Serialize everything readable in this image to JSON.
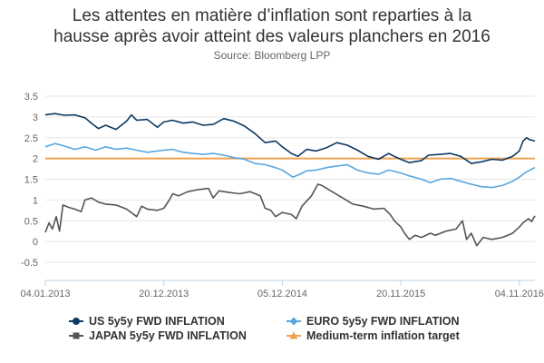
{
  "header": {
    "title_line_1": "Les attentes en matière d’inflation sont reparties à la",
    "title_line_2": "hausse après avoir atteint des valeurs planchers en 2016",
    "subtitle": "Source: Bloomberg LPP"
  },
  "chart_data": {
    "type": "line",
    "grid": true,
    "legend_position": "bottom",
    "ylim": [
      -0.5,
      3.5
    ],
    "y_ticks": [
      3.5,
      3,
      2.5,
      2,
      1.5,
      1,
      0.5,
      0,
      -0.5
    ],
    "y_tick_labels": [
      "3.5",
      "3",
      "2.5",
      "2",
      "1.5",
      "1",
      "0.5",
      "0",
      "-0.5"
    ],
    "xlim": [
      "2013-01-04",
      "2016-12-20"
    ],
    "x_ticks": [
      "2013-01-04",
      "2013-12-20",
      "2014-12-05",
      "2015-11-20",
      "2016-11-04"
    ],
    "x_tick_labels": [
      "04.01.2013",
      "20.12.2013",
      "05.12.2014",
      "20.11.2015",
      "04.11.2016"
    ],
    "series": [
      {
        "name": "US 5y5y FWD INFLATION",
        "color": "#0b3a63",
        "marker": "circle",
        "points": [
          [
            "2013-01-04",
            3.05
          ],
          [
            "2013-02-01",
            3.08
          ],
          [
            "2013-03-01",
            3.04
          ],
          [
            "2013-04-01",
            3.05
          ],
          [
            "2013-05-01",
            2.98
          ],
          [
            "2013-05-20",
            2.85
          ],
          [
            "2013-06-10",
            2.72
          ],
          [
            "2013-07-01",
            2.8
          ],
          [
            "2013-08-01",
            2.7
          ],
          [
            "2013-09-01",
            2.9
          ],
          [
            "2013-09-15",
            3.05
          ],
          [
            "2013-10-01",
            2.92
          ],
          [
            "2013-11-01",
            2.94
          ],
          [
            "2013-12-01",
            2.75
          ],
          [
            "2013-12-20",
            2.88
          ],
          [
            "2014-01-15",
            2.92
          ],
          [
            "2014-02-15",
            2.85
          ],
          [
            "2014-03-15",
            2.88
          ],
          [
            "2014-04-15",
            2.8
          ],
          [
            "2014-05-15",
            2.82
          ],
          [
            "2014-06-15",
            2.96
          ],
          [
            "2014-07-15",
            2.9
          ],
          [
            "2014-08-15",
            2.78
          ],
          [
            "2014-09-15",
            2.6
          ],
          [
            "2014-10-15",
            2.38
          ],
          [
            "2014-11-15",
            2.42
          ],
          [
            "2014-12-05",
            2.28
          ],
          [
            "2015-01-01",
            2.12
          ],
          [
            "2015-01-20",
            2.05
          ],
          [
            "2015-02-15",
            2.22
          ],
          [
            "2015-03-15",
            2.18
          ],
          [
            "2015-04-15",
            2.26
          ],
          [
            "2015-05-15",
            2.38
          ],
          [
            "2015-06-15",
            2.32
          ],
          [
            "2015-07-15",
            2.2
          ],
          [
            "2015-08-15",
            2.05
          ],
          [
            "2015-09-15",
            1.98
          ],
          [
            "2015-10-15",
            2.12
          ],
          [
            "2015-11-01",
            2.05
          ],
          [
            "2015-11-20",
            1.98
          ],
          [
            "2015-12-15",
            1.9
          ],
          [
            "2016-01-20",
            1.95
          ],
          [
            "2016-02-10",
            2.08
          ],
          [
            "2016-03-15",
            2.1
          ],
          [
            "2016-04-15",
            2.12
          ],
          [
            "2016-05-15",
            2.05
          ],
          [
            "2016-06-15",
            1.88
          ],
          [
            "2016-07-15",
            1.92
          ],
          [
            "2016-08-15",
            1.98
          ],
          [
            "2016-09-15",
            1.96
          ],
          [
            "2016-10-15",
            2.05
          ],
          [
            "2016-11-04",
            2.18
          ],
          [
            "2016-11-15",
            2.42
          ],
          [
            "2016-11-25",
            2.5
          ],
          [
            "2016-12-05",
            2.45
          ],
          [
            "2016-12-20",
            2.42
          ]
        ]
      },
      {
        "name": "EURO 5y5y FWD INFLATION",
        "color": "#5aa7e0",
        "marker": "diamond",
        "points": [
          [
            "2013-01-04",
            2.28
          ],
          [
            "2013-02-01",
            2.36
          ],
          [
            "2013-03-01",
            2.3
          ],
          [
            "2013-04-01",
            2.22
          ],
          [
            "2013-05-01",
            2.28
          ],
          [
            "2013-06-01",
            2.2
          ],
          [
            "2013-07-01",
            2.28
          ],
          [
            "2013-08-01",
            2.22
          ],
          [
            "2013-09-01",
            2.25
          ],
          [
            "2013-10-01",
            2.2
          ],
          [
            "2013-11-01",
            2.15
          ],
          [
            "2013-12-20",
            2.2
          ],
          [
            "2014-01-15",
            2.22
          ],
          [
            "2014-02-15",
            2.15
          ],
          [
            "2014-03-15",
            2.12
          ],
          [
            "2014-04-15",
            2.1
          ],
          [
            "2014-05-15",
            2.12
          ],
          [
            "2014-06-15",
            2.08
          ],
          [
            "2014-07-15",
            2.02
          ],
          [
            "2014-08-15",
            1.98
          ],
          [
            "2014-09-15",
            1.88
          ],
          [
            "2014-10-15",
            1.85
          ],
          [
            "2014-11-15",
            1.78
          ],
          [
            "2014-12-05",
            1.72
          ],
          [
            "2015-01-05",
            1.55
          ],
          [
            "2015-01-20",
            1.6
          ],
          [
            "2015-02-15",
            1.7
          ],
          [
            "2015-03-15",
            1.72
          ],
          [
            "2015-04-15",
            1.78
          ],
          [
            "2015-05-15",
            1.82
          ],
          [
            "2015-06-15",
            1.85
          ],
          [
            "2015-07-15",
            1.72
          ],
          [
            "2015-08-15",
            1.65
          ],
          [
            "2015-09-15",
            1.62
          ],
          [
            "2015-10-15",
            1.72
          ],
          [
            "2015-11-20",
            1.65
          ],
          [
            "2015-12-15",
            1.58
          ],
          [
            "2016-01-20",
            1.5
          ],
          [
            "2016-02-15",
            1.42
          ],
          [
            "2016-03-15",
            1.5
          ],
          [
            "2016-04-15",
            1.52
          ],
          [
            "2016-05-15",
            1.45
          ],
          [
            "2016-06-15",
            1.38
          ],
          [
            "2016-07-15",
            1.32
          ],
          [
            "2016-08-15",
            1.3
          ],
          [
            "2016-09-15",
            1.35
          ],
          [
            "2016-10-15",
            1.45
          ],
          [
            "2016-11-04",
            1.55
          ],
          [
            "2016-11-20",
            1.65
          ],
          [
            "2016-12-05",
            1.72
          ],
          [
            "2016-12-20",
            1.78
          ]
        ]
      },
      {
        "name": "JAPAN 5y5y FWD INFLATION",
        "color": "#555555",
        "marker": "square",
        "points": [
          [
            "2013-01-04",
            0.22
          ],
          [
            "2013-01-15",
            0.45
          ],
          [
            "2013-01-25",
            0.3
          ],
          [
            "2013-02-05",
            0.6
          ],
          [
            "2013-02-15",
            0.25
          ],
          [
            "2013-02-25",
            0.88
          ],
          [
            "2013-03-15",
            0.82
          ],
          [
            "2013-04-01",
            0.78
          ],
          [
            "2013-04-20",
            0.72
          ],
          [
            "2013-05-01",
            1.0
          ],
          [
            "2013-05-20",
            1.05
          ],
          [
            "2013-06-10",
            0.95
          ],
          [
            "2013-07-01",
            0.9
          ],
          [
            "2013-08-01",
            0.88
          ],
          [
            "2013-09-01",
            0.78
          ],
          [
            "2013-10-01",
            0.6
          ],
          [
            "2013-10-15",
            0.85
          ],
          [
            "2013-11-01",
            0.78
          ],
          [
            "2013-12-01",
            0.75
          ],
          [
            "2013-12-20",
            0.8
          ],
          [
            "2014-01-05",
            1.0
          ],
          [
            "2014-01-15",
            1.15
          ],
          [
            "2014-02-01",
            1.1
          ],
          [
            "2014-03-01",
            1.2
          ],
          [
            "2014-04-01",
            1.25
          ],
          [
            "2014-05-01",
            1.28
          ],
          [
            "2014-05-15",
            1.05
          ],
          [
            "2014-06-01",
            1.22
          ],
          [
            "2014-07-01",
            1.18
          ],
          [
            "2014-08-01",
            1.15
          ],
          [
            "2014-09-01",
            1.2
          ],
          [
            "2014-10-01",
            1.1
          ],
          [
            "2014-10-15",
            0.8
          ],
          [
            "2014-11-01",
            0.75
          ],
          [
            "2014-11-15",
            0.6
          ],
          [
            "2014-12-05",
            0.7
          ],
          [
            "2015-01-01",
            0.65
          ],
          [
            "2015-01-15",
            0.55
          ],
          [
            "2015-02-01",
            0.85
          ],
          [
            "2015-03-01",
            1.1
          ],
          [
            "2015-03-20",
            1.38
          ],
          [
            "2015-04-01",
            1.35
          ],
          [
            "2015-05-01",
            1.2
          ],
          [
            "2015-06-01",
            1.05
          ],
          [
            "2015-07-01",
            0.9
          ],
          [
            "2015-08-01",
            0.85
          ],
          [
            "2015-09-01",
            0.78
          ],
          [
            "2015-10-01",
            0.8
          ],
          [
            "2015-10-20",
            0.65
          ],
          [
            "2015-11-01",
            0.5
          ],
          [
            "2015-11-20",
            0.35
          ],
          [
            "2015-12-01",
            0.2
          ],
          [
            "2015-12-15",
            0.05
          ],
          [
            "2016-01-01",
            0.15
          ],
          [
            "2016-01-20",
            0.1
          ],
          [
            "2016-02-15",
            0.2
          ],
          [
            "2016-03-01",
            0.15
          ],
          [
            "2016-04-01",
            0.25
          ],
          [
            "2016-05-01",
            0.3
          ],
          [
            "2016-05-20",
            0.5
          ],
          [
            "2016-06-01",
            0.05
          ],
          [
            "2016-06-15",
            0.2
          ],
          [
            "2016-07-01",
            -0.1
          ],
          [
            "2016-07-20",
            0.1
          ],
          [
            "2016-08-15",
            0.05
          ],
          [
            "2016-09-15",
            0.1
          ],
          [
            "2016-10-15",
            0.2
          ],
          [
            "2016-11-04",
            0.35
          ],
          [
            "2016-11-15",
            0.45
          ],
          [
            "2016-12-01",
            0.55
          ],
          [
            "2016-12-10",
            0.48
          ],
          [
            "2016-12-20",
            0.62
          ]
        ]
      },
      {
        "name": "Medium-term inflation target",
        "color": "#f0a050",
        "marker": "triangle",
        "points": [
          [
            "2013-01-04",
            2.0
          ],
          [
            "2016-12-20",
            2.0
          ]
        ]
      }
    ]
  }
}
